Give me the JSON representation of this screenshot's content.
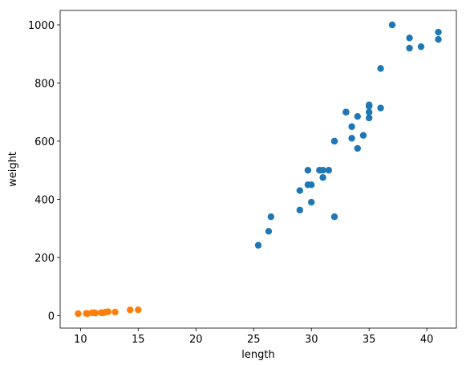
{
  "chart_data": {
    "type": "scatter",
    "xlabel": "length",
    "ylabel": "weight",
    "xlim": [
      8.24,
      42.56
    ],
    "xticks": [
      10,
      15,
      20,
      25,
      30,
      35,
      40
    ],
    "ylim": [
      -42.97,
      1049.67
    ],
    "yticks": [
      0,
      200,
      400,
      600,
      800,
      1000
    ],
    "series": [
      {
        "color": "#1f77b4",
        "x": [
          25.4,
          26.3,
          26.5,
          29.0,
          29.0,
          29.7,
          29.7,
          30.0,
          30.0,
          30.7,
          31.0,
          31.0,
          31.5,
          32.0,
          32.0,
          32.0,
          33.0,
          33.0,
          33.5,
          33.5,
          34.0,
          34.0,
          34.5,
          35.0,
          35.0,
          35.0,
          35.0,
          36.0,
          36.0,
          37.0,
          38.5,
          38.5,
          39.5,
          41.0,
          41.0
        ],
        "values": [
          242,
          290,
          340,
          363,
          430,
          450,
          500,
          390,
          450,
          500,
          475,
          500,
          500,
          340,
          600,
          600,
          700,
          700,
          610,
          650,
          575,
          685,
          620,
          680,
          700,
          725,
          720,
          714,
          850,
          1000,
          920,
          955,
          925,
          975,
          950
        ]
      },
      {
        "color": "#ff7f0e",
        "x": [
          9.8,
          10.5,
          10.6,
          11.0,
          11.2,
          11.3,
          11.8,
          11.8,
          12.0,
          12.2,
          12.4,
          13.0,
          14.3,
          15.0
        ],
        "values": [
          6.7,
          7.5,
          7.0,
          9.7,
          9.8,
          8.7,
          10.0,
          9.9,
          9.8,
          12.2,
          13.4,
          12.2,
          19.7,
          19.9
        ]
      }
    ]
  }
}
